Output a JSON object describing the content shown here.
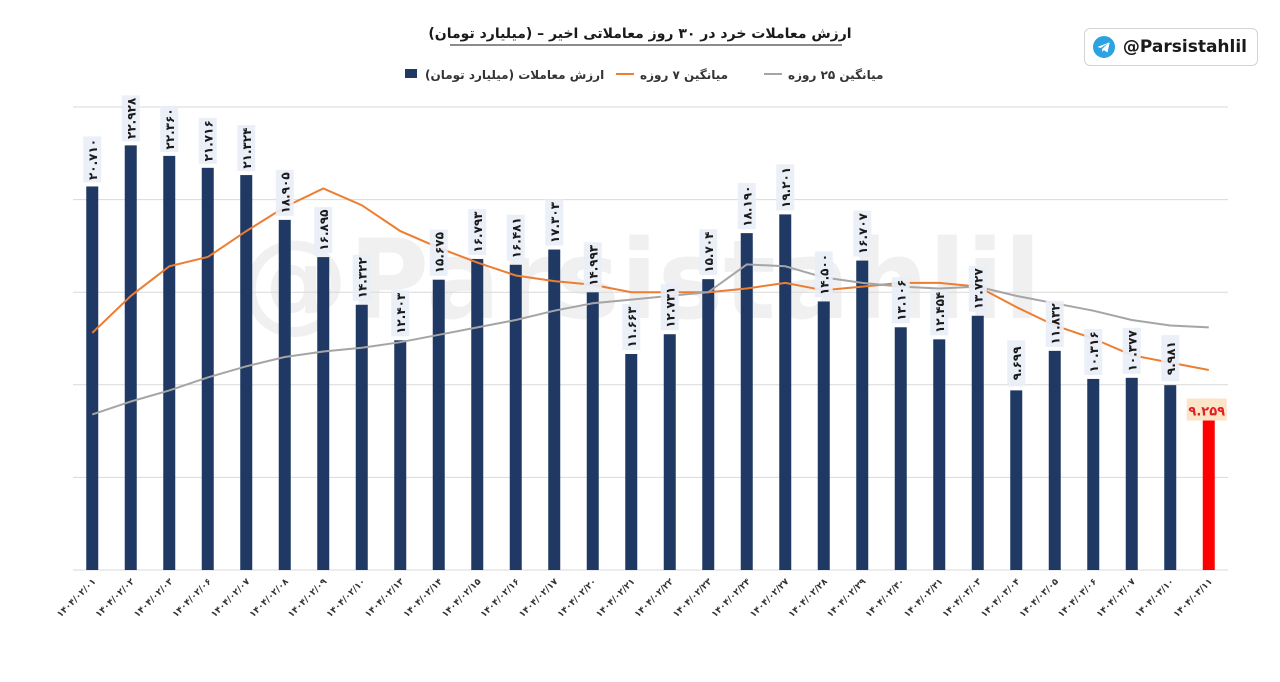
{
  "badge": {
    "handle": "@Parsistahlil",
    "icon": "telegram-icon"
  },
  "watermark": "@Parsistahlil",
  "colors": {
    "bar": "#1f3864",
    "last_bar": "#ff0000",
    "ma7": "#ed7d31",
    "ma25": "#a5a5a5",
    "grid": "#d9d9d9",
    "label_bg": "#e8eef7",
    "last_label_bg": "#fbe4c8"
  },
  "chart_data": {
    "type": "bar",
    "title": "ارزش معاملات خرد در ۳۰ روز معاملاتی اخیر – (میلیارد تومان)",
    "legend_position": "top",
    "grid": true,
    "ylim": [
      0,
      25000
    ],
    "categories": [
      "۱۴۰۴/۰۲/۰۱",
      "۱۴۰۴/۰۲/۰۲",
      "۱۴۰۴/۰۲/۰۳",
      "۱۴۰۴/۰۲/۰۶",
      "۱۴۰۴/۰۲/۰۷",
      "۱۴۰۴/۰۲/۰۸",
      "۱۴۰۴/۰۲/۰۹",
      "۱۴۰۴/۰۲/۱۰",
      "۱۴۰۴/۰۲/۱۳",
      "۱۴۰۴/۰۲/۱۴",
      "۱۴۰۴/۰۲/۱۵",
      "۱۴۰۴/۰۲/۱۶",
      "۱۴۰۴/۰۲/۱۷",
      "۱۴۰۴/۰۲/۲۰",
      "۱۴۰۴/۰۲/۲۱",
      "۱۴۰۴/۰۲/۲۲",
      "۱۴۰۴/۰۲/۲۳",
      "۱۴۰۴/۰۲/۲۴",
      "۱۴۰۴/۰۲/۲۷",
      "۱۴۰۴/۰۲/۲۸",
      "۱۴۰۴/۰۲/۲۹",
      "۱۴۰۴/۰۲/۳۰",
      "۱۴۰۴/۰۲/۳۱",
      "۱۴۰۴/۰۳/۰۳",
      "۱۴۰۴/۰۳/۰۴",
      "۱۴۰۴/۰۳/۰۵",
      "۱۴۰۴/۰۳/۰۶",
      "۱۴۰۴/۰۳/۰۷",
      "۱۴۰۴/۰۳/۱۰",
      "۱۴۰۴/۰۳/۱۱"
    ],
    "series": [
      {
        "name": "ارزش معاملات (میلیارد تومان)",
        "kind": "bar",
        "values": [
          20710,
          22928,
          22360,
          21716,
          21324,
          18905,
          16895,
          14322,
          12403,
          15675,
          16793,
          16481,
          17303,
          14993,
          11663,
          12731,
          15704,
          18190,
          19201,
          14500,
          16707,
          13106,
          12454,
          13727,
          9699,
          11832,
          10316,
          10377,
          9981,
          9259
        ],
        "labels": [
          "۲۰.۷۱۰",
          "۲۲.۹۲۸",
          "۲۲.۳۶۰",
          "۲۱.۷۱۶",
          "۲۱.۳۲۴",
          "۱۸.۹۰۵",
          "۱۶.۸۹۵",
          "۱۴.۳۲۲",
          "۱۲.۴۰۳",
          "۱۵.۶۷۵",
          "۱۶.۷۹۳",
          "۱۶.۴۸۱",
          "۱۷.۳۰۳",
          "۱۴.۹۹۳",
          "۱۱.۶۶۳",
          "۱۲.۷۳۱",
          "۱۵.۷۰۴",
          "۱۸.۱۹۰",
          "۱۹.۲۰۱",
          "۱۴.۵۰۰",
          "۱۶.۷۰۷",
          "۱۳.۱۰۶",
          "۱۲.۴۵۴",
          "۱۳.۷۲۷",
          "۹.۶۹۹",
          "۱۱.۸۳۲",
          "۱۰.۳۱۶",
          "۱۰.۳۷۷",
          "۹.۹۸۱",
          "۹.۲۵۹"
        ]
      },
      {
        "name": "میانگین ۷ روزه",
        "kind": "line",
        "values": [
          12800,
          14800,
          16400,
          16900,
          18300,
          19600,
          20600,
          19700,
          18300,
          17400,
          16600,
          15900,
          15600,
          15400,
          15000,
          15000,
          15000,
          15200,
          15500,
          15100,
          15300,
          15500,
          15500,
          15300,
          14200,
          13200,
          12500,
          11600,
          11200,
          10800
        ]
      },
      {
        "name": "میانگین ۲۵ روزه",
        "kind": "line",
        "values": [
          8400,
          9100,
          9700,
          10400,
          11000,
          11500,
          11800,
          12000,
          12300,
          12700,
          13100,
          13500,
          14000,
          14400,
          14600,
          14800,
          15000,
          16500,
          16400,
          15800,
          15500,
          15300,
          15200,
          15300,
          14800,
          14400,
          14000,
          13500,
          13200,
          13100
        ]
      }
    ]
  }
}
